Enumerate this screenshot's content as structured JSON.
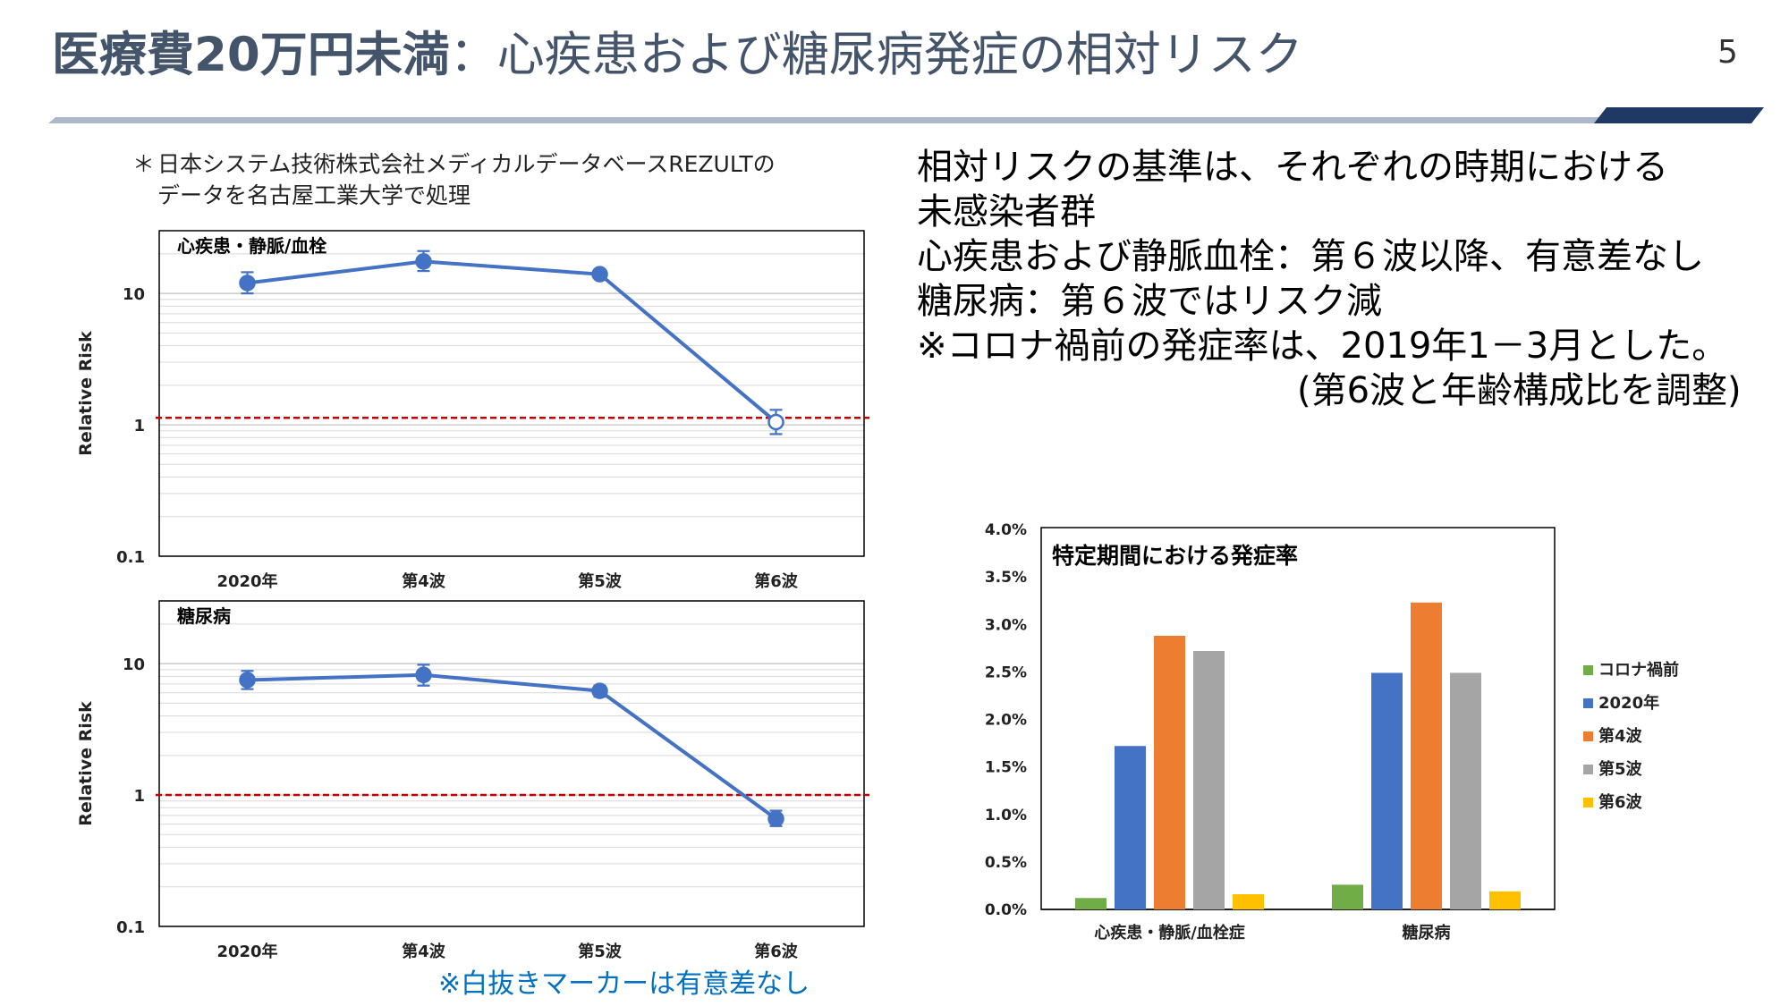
{
  "header": {
    "title_bold": "医療費20万円未満",
    "title_separator": "：",
    "title_rest": "心疾患および糖尿病発症の相対リスク",
    "page_number": "5",
    "colors": {
      "title": "#44546a",
      "bar_light": "#adb9ca",
      "bar_dark": "#1f3864"
    }
  },
  "source_note": {
    "mark": "＊",
    "line1": "日本システム技術株式会社メディカルデータベースREZULTの",
    "line2": "データを名古屋工業大学で処理"
  },
  "explanation": {
    "line1": "相対リスクの基準は、それぞれの時期における",
    "line2": "未感染者群",
    "line3": "心疾患および静脈血栓：第６波以降、有意差なし",
    "line4": "糖尿病：第６波ではリスク減",
    "line5": "※コロナ禍前の発症率は、2019年1－3月とした。",
    "line6": "(第6波と年齢構成比を調整)"
  },
  "white_marker_note": "※白抜きマーカーは有意差なし",
  "chart_data": [
    {
      "type": "line",
      "title": "心疾患・静脈/血栓",
      "ylabel": "Relative Risk",
      "xlabel": "",
      "yscale": "log",
      "ylim": [
        0.1,
        30
      ],
      "yticks": [
        "0.1",
        "1",
        "10"
      ],
      "categories": [
        "2020年",
        "第4波",
        "第5波",
        "第6波"
      ],
      "values": [
        12.0,
        17.5,
        14.0,
        1.05
      ],
      "error_low": [
        10.0,
        14.8,
        13.0,
        0.85
      ],
      "error_high": [
        14.5,
        21.0,
        15.2,
        1.3
      ],
      "significant": [
        true,
        true,
        true,
        false
      ],
      "reference_line": 1.13,
      "line_color": "#4472c4",
      "reference_color": "#c00000"
    },
    {
      "type": "line",
      "title": "糖尿病",
      "ylabel": "Relative Risk",
      "xlabel": "",
      "yscale": "log",
      "ylim": [
        0.1,
        30
      ],
      "yticks": [
        "0.1",
        "1",
        "10"
      ],
      "categories": [
        "2020年",
        "第4波",
        "第5波",
        "第6波"
      ],
      "values": [
        7.5,
        8.2,
        6.2,
        0.66
      ],
      "error_low": [
        6.4,
        6.8,
        5.6,
        0.58
      ],
      "error_high": [
        8.8,
        9.8,
        6.8,
        0.76
      ],
      "significant": [
        true,
        true,
        true,
        true
      ],
      "reference_line": 1.0,
      "line_color": "#4472c4",
      "reference_color": "#c00000"
    },
    {
      "type": "bar",
      "title": "特定期間における発症率",
      "xlabel": "",
      "ylabel": "",
      "ylim": [
        0,
        4.0
      ],
      "yticks": [
        "0.0%",
        "0.5%",
        "1.0%",
        "1.5%",
        "2.0%",
        "2.5%",
        "3.0%",
        "3.5%",
        "4.0%"
      ],
      "categories": [
        "心疾患・静脈/血栓症",
        "糖尿病"
      ],
      "series": [
        {
          "name": "コロナ禍前",
          "values": [
            0.12,
            0.26
          ],
          "color": "#70ad47"
        },
        {
          "name": "2020年",
          "values": [
            1.72,
            2.49
          ],
          "color": "#4472c4"
        },
        {
          "name": "第4波",
          "values": [
            2.88,
            3.23
          ],
          "color": "#ed7d31"
        },
        {
          "name": "第5波",
          "values": [
            2.72,
            2.49
          ],
          "color": "#a5a5a5"
        },
        {
          "name": "第6波",
          "values": [
            0.16,
            0.19
          ],
          "color": "#ffc000"
        }
      ],
      "legend": "right"
    }
  ]
}
